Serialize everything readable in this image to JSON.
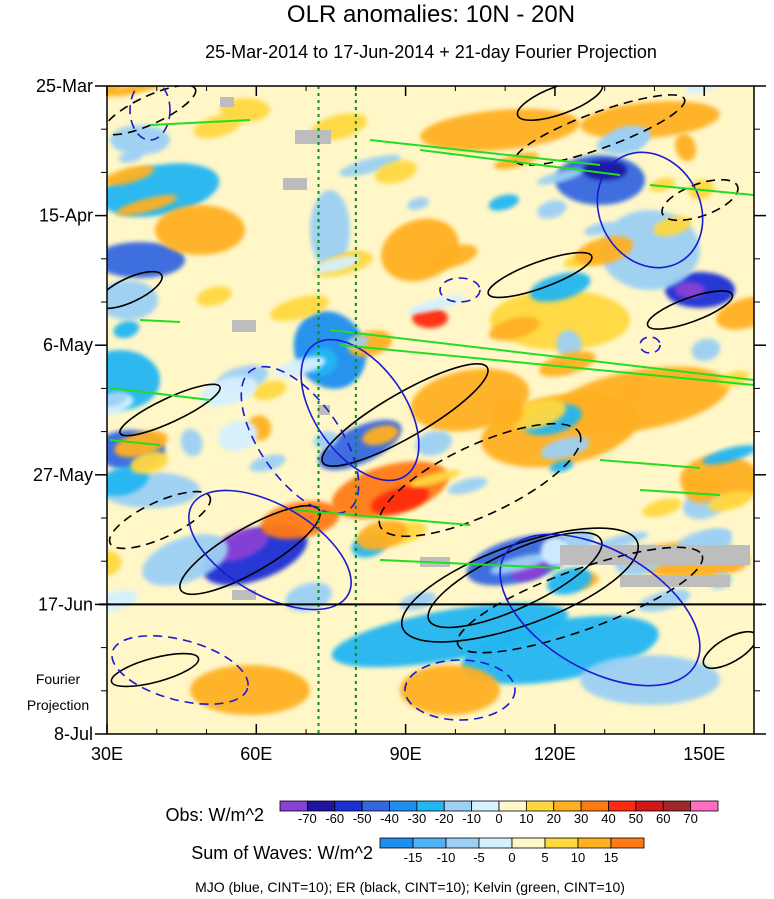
{
  "chart_data": {
    "type": "heatmap",
    "title": "OLR anomalies: 10N - 20N",
    "subtitle": "25-Mar-2014 to 17-Jun-2014 + 21-day Fourier Projection",
    "x_ticks": [
      "30E",
      "60E",
      "90E",
      "120E",
      "150E"
    ],
    "x_tick_values": [
      30,
      60,
      90,
      120,
      150
    ],
    "xlim": [
      30,
      160
    ],
    "y_ticks": [
      "25-Mar",
      "15-Apr",
      "6-May",
      "27-May",
      "17-Jun",
      "8-Jul"
    ],
    "y_tick_days": [
      0,
      21,
      42,
      63,
      84,
      105
    ],
    "ylim_days": [
      0,
      105
    ],
    "projection_label_line1": "Fourier",
    "projection_label_line2": "Projection",
    "projection_start_day": 84,
    "dotted_lines_lon": [
      72.5,
      80
    ],
    "obs_colorbar": {
      "label": "Obs: W/m^2",
      "levels": [
        "-70",
        "-60",
        "-50",
        "-40",
        "-30",
        "-20",
        "-10",
        "0",
        "10",
        "20",
        "30",
        "40",
        "50",
        "60",
        "70"
      ],
      "colors": [
        "#8a3fd6",
        "#1e14a0",
        "#1a2fd6",
        "#3567e0",
        "#1e8ef0",
        "#22b6f2",
        "#9cd0f4",
        "#d6f0ff",
        "#fff7c8",
        "#ffd840",
        "#ffb020",
        "#ff7a12",
        "#ff2a10",
        "#d01818",
        "#a02828",
        "#ff6ec0"
      ]
    },
    "waves_colorbar": {
      "label": "Sum of Waves: W/m^2",
      "levels": [
        "-15",
        "-10",
        "-5",
        "0",
        "5",
        "10",
        "15"
      ],
      "colors": [
        "#1e8ef0",
        "#52b0f4",
        "#9cd0f4",
        "#d6f0ff",
        "#fff7c8",
        "#ffd840",
        "#ffb020",
        "#ff7a12"
      ]
    },
    "footer": "MJO (blue, CINT=10); ER (black, CINT=10); Kelvin (green, CINT=10)",
    "contour_colors": {
      "mjo": "#1a1ad0",
      "er": "#000000",
      "kelvin": "#22dd22"
    }
  }
}
